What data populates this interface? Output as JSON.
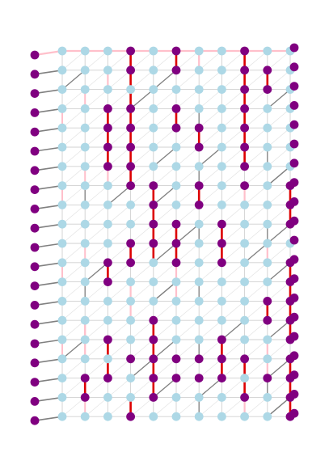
{
  "graph": {
    "cols": 12,
    "rows": 20,
    "colors": {
      "node_light": "#add8e6",
      "node_dark": "#800080",
      "edge_red": "#dd0000",
      "edge_gray": "#808080",
      "edge_pink": "#ffc0cb",
      "edge_lightgray": "#d0d0d0"
    },
    "left_nodes": 20,
    "right_nodes": 20,
    "dark_nodes": [
      [
        4,
        0
      ],
      [
        6,
        0
      ],
      [
        9,
        0
      ],
      [
        4,
        1
      ],
      [
        6,
        1
      ],
      [
        9,
        1
      ],
      [
        10,
        1
      ],
      [
        9,
        2
      ],
      [
        10,
        2
      ],
      [
        3,
        3
      ],
      [
        4,
        3
      ],
      [
        6,
        3
      ],
      [
        9,
        3
      ],
      [
        3,
        4
      ],
      [
        4,
        4
      ],
      [
        6,
        4
      ],
      [
        7,
        4
      ],
      [
        9,
        4
      ],
      [
        3,
        5
      ],
      [
        4,
        5
      ],
      [
        7,
        5
      ],
      [
        9,
        5
      ],
      [
        3,
        6
      ],
      [
        4,
        6
      ],
      [
        9,
        6
      ],
      [
        4,
        7
      ],
      [
        5,
        7
      ],
      [
        7,
        7
      ],
      [
        9,
        7
      ],
      [
        11,
        7
      ],
      [
        5,
        8
      ],
      [
        7,
        8
      ],
      [
        11,
        8
      ],
      [
        5,
        9
      ],
      [
        6,
        9
      ],
      [
        8,
        9
      ],
      [
        11,
        9
      ],
      [
        4,
        10
      ],
      [
        5,
        10
      ],
      [
        6,
        10
      ],
      [
        8,
        10
      ],
      [
        3,
        11
      ],
      [
        4,
        11
      ],
      [
        6,
        11
      ],
      [
        8,
        11
      ],
      [
        11,
        11
      ],
      [
        3,
        12
      ],
      [
        11,
        12
      ],
      [
        10,
        13
      ],
      [
        11,
        13
      ],
      [
        5,
        14
      ],
      [
        10,
        14
      ],
      [
        11,
        14
      ],
      [
        3,
        15
      ],
      [
        5,
        15
      ],
      [
        8,
        15
      ],
      [
        11,
        15
      ],
      [
        4,
        16
      ],
      [
        5,
        16
      ],
      [
        6,
        16
      ],
      [
        7,
        16
      ],
      [
        8,
        16
      ],
      [
        9,
        16
      ],
      [
        11,
        16
      ],
      [
        2,
        17
      ],
      [
        3,
        17
      ],
      [
        5,
        17
      ],
      [
        6,
        17
      ],
      [
        7,
        17
      ],
      [
        8,
        17
      ],
      [
        10,
        17
      ],
      [
        11,
        17
      ],
      [
        2,
        18
      ],
      [
        5,
        18
      ],
      [
        9,
        18
      ],
      [
        11,
        18
      ],
      [
        4,
        19
      ],
      [
        11,
        19
      ]
    ],
    "red_edges": [
      [
        [
          4,
          0
        ],
        [
          4,
          1
        ]
      ],
      [
        [
          4,
          1
        ],
        [
          4,
          2
        ]
      ],
      [
        [
          4,
          2
        ],
        [
          4,
          3
        ]
      ],
      [
        [
          4,
          3
        ],
        [
          4,
          4
        ]
      ],
      [
        [
          4,
          4
        ],
        [
          4,
          5
        ]
      ],
      [
        [
          4,
          5
        ],
        [
          4,
          6
        ]
      ],
      [
        [
          4,
          6
        ],
        [
          4,
          7
        ]
      ],
      [
        [
          6,
          0
        ],
        [
          6,
          1
        ]
      ],
      [
        [
          6,
          3
        ],
        [
          6,
          4
        ]
      ],
      [
        [
          7,
          4
        ],
        [
          7,
          5
        ]
      ],
      [
        [
          9,
          0
        ],
        [
          9,
          1
        ]
      ],
      [
        [
          9,
          1
        ],
        [
          9,
          2
        ]
      ],
      [
        [
          9,
          2
        ],
        [
          9,
          3
        ]
      ],
      [
        [
          9,
          3
        ],
        [
          9,
          4
        ]
      ],
      [
        [
          9,
          4
        ],
        [
          9,
          5
        ]
      ],
      [
        [
          9,
          5
        ],
        [
          9,
          6
        ]
      ],
      [
        [
          10,
          1
        ],
        [
          10,
          2
        ]
      ],
      [
        [
          3,
          3
        ],
        [
          3,
          4
        ]
      ],
      [
        [
          3,
          4
        ],
        [
          3,
          5
        ]
      ],
      [
        [
          3,
          5
        ],
        [
          3,
          6
        ]
      ],
      [
        [
          5,
          7
        ],
        [
          5,
          8
        ]
      ],
      [
        [
          5,
          8
        ],
        [
          5,
          9
        ]
      ],
      [
        [
          5,
          9
        ],
        [
          5,
          10
        ]
      ],
      [
        [
          5,
          10
        ],
        [
          5,
          11
        ]
      ],
      [
        [
          7,
          7
        ],
        [
          7,
          8
        ]
      ],
      [
        [
          6,
          9
        ],
        [
          6,
          10
        ]
      ],
      [
        [
          6,
          10
        ],
        [
          6,
          11
        ]
      ],
      [
        [
          8,
          9
        ],
        [
          8,
          10
        ]
      ],
      [
        [
          8,
          10
        ],
        [
          8,
          11
        ]
      ],
      [
        [
          11,
          7
        ],
        [
          11,
          8
        ]
      ],
      [
        [
          11,
          8
        ],
        [
          11,
          9
        ]
      ],
      [
        [
          11,
          11
        ],
        [
          11,
          12
        ]
      ],
      [
        [
          11,
          12
        ],
        [
          11,
          13
        ]
      ],
      [
        [
          3,
          11
        ],
        [
          3,
          12
        ]
      ],
      [
        [
          4,
          10
        ],
        [
          4,
          11
        ]
      ],
      [
        [
          10,
          13
        ],
        [
          10,
          14
        ]
      ],
      [
        [
          11,
          13
        ],
        [
          11,
          14
        ]
      ],
      [
        [
          11,
          14
        ],
        [
          11,
          15
        ]
      ],
      [
        [
          5,
          14
        ],
        [
          5,
          15
        ]
      ],
      [
        [
          5,
          15
        ],
        [
          5,
          16
        ]
      ],
      [
        [
          5,
          16
        ],
        [
          5,
          17
        ]
      ],
      [
        [
          5,
          17
        ],
        [
          5,
          18
        ]
      ],
      [
        [
          3,
          15
        ],
        [
          3,
          16
        ]
      ],
      [
        [
          3,
          16
        ],
        [
          3,
          17
        ]
      ],
      [
        [
          8,
          15
        ],
        [
          8,
          16
        ]
      ],
      [
        [
          8,
          16
        ],
        [
          8,
          17
        ]
      ],
      [
        [
          9,
          16
        ],
        [
          9,
          17
        ]
      ],
      [
        [
          9,
          17
        ],
        [
          9,
          18
        ]
      ],
      [
        [
          11,
          16
        ],
        [
          11,
          17
        ]
      ],
      [
        [
          11,
          17
        ],
        [
          11,
          18
        ]
      ],
      [
        [
          11,
          18
        ],
        [
          11,
          19
        ]
      ],
      [
        [
          2,
          17
        ],
        [
          2,
          18
        ]
      ],
      [
        [
          4,
          18
        ],
        [
          4,
          19
        ]
      ],
      [
        [
          11,
          19
        ],
        [
          12,
          19
        ]
      ]
    ],
    "pink_edges": [
      [
        [
          1,
          0
        ],
        [
          2,
          0
        ]
      ],
      [
        [
          2,
          0
        ],
        [
          3,
          0
        ]
      ],
      [
        [
          3,
          0
        ],
        [
          4,
          0
        ]
      ],
      [
        [
          4,
          0
        ],
        [
          5,
          0
        ]
      ],
      [
        [
          5,
          0
        ],
        [
          6,
          0
        ]
      ],
      [
        [
          6,
          0
        ],
        [
          7,
          0
        ]
      ],
      [
        [
          7,
          0
        ],
        [
          8,
          0
        ]
      ],
      [
        [
          8,
          0
        ],
        [
          9,
          0
        ]
      ],
      [
        [
          9,
          0
        ],
        [
          10,
          0
        ]
      ],
      [
        [
          10,
          0
        ],
        [
          11,
          0
        ]
      ],
      [
        [
          0,
          0
        ],
        [
          1,
          0
        ]
      ],
      [
        [
          11,
          0
        ],
        [
          12,
          0
        ]
      ],
      [
        [
          3,
          1
        ],
        [
          3,
          2
        ]
      ],
      [
        [
          3,
          6
        ],
        [
          3,
          7
        ]
      ],
      [
        [
          7,
          0
        ],
        [
          7,
          1
        ]
      ],
      [
        [
          6,
          11
        ],
        [
          6,
          12
        ]
      ],
      [
        [
          4,
          12
        ],
        [
          4,
          13
        ]
      ],
      [
        [
          9,
          7
        ],
        [
          9,
          8
        ]
      ],
      [
        [
          6,
          12
        ],
        [
          6,
          13
        ]
      ],
      [
        [
          10,
          10
        ],
        [
          10,
          11
        ]
      ],
      [
        [
          10,
          15
        ],
        [
          10,
          16
        ]
      ],
      [
        [
          4,
          13
        ],
        [
          4,
          14
        ]
      ],
      [
        [
          2,
          14
        ],
        [
          2,
          15
        ]
      ],
      [
        [
          2,
          15
        ],
        [
          2,
          16
        ]
      ],
      [
        [
          10,
          16
        ],
        [
          10,
          17
        ]
      ],
      [
        [
          9,
          19
        ],
        [
          9,
          18
        ]
      ]
    ],
    "pink_vert_cols": [
      1,
      2
    ],
    "gray_diag_rows": [
      1,
      2,
      5,
      6,
      7,
      9,
      10,
      11,
      12,
      14,
      15,
      16,
      17,
      18
    ]
  }
}
